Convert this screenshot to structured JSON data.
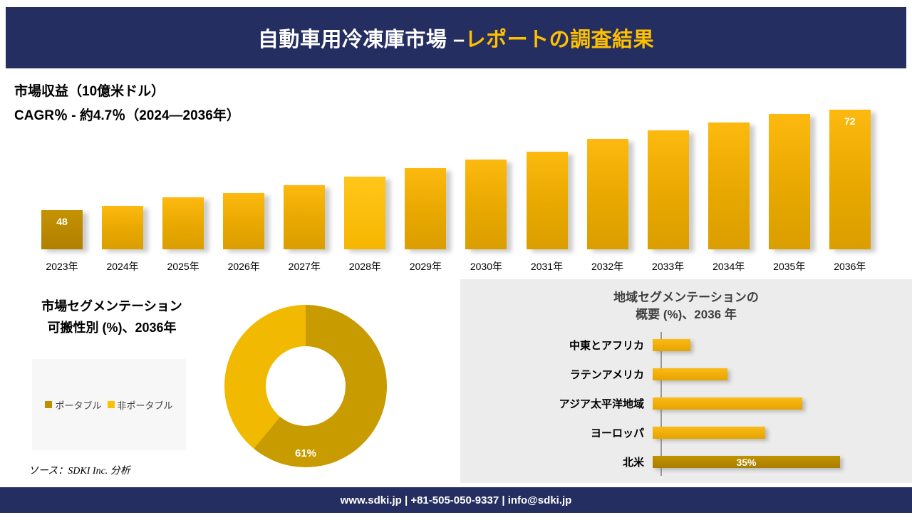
{
  "header": {
    "title_white": "自動車用冷凍庫市場 –",
    "title_gold": "レポートの調査結果"
  },
  "colors": {
    "navy": "#252e60",
    "gold": "#e8a800",
    "gold_bright": "#ffc000",
    "gold_dark": "#bf8f00",
    "panel_gray": "#ececec",
    "header_accent": "#ffc000"
  },
  "chart_data": [
    {
      "type": "bar",
      "title": "市場収益（10億米ドル）",
      "subtitle": "CAGR％ - 約4.7％（2024―2036年）",
      "categories": [
        "2023年",
        "2024年",
        "2025年",
        "2026年",
        "2027年",
        "2028年",
        "2029年",
        "2030年",
        "2031年",
        "2032年",
        "2033年",
        "2034年",
        "2035年",
        "2036年"
      ],
      "values": [
        48,
        49,
        51,
        52,
        54,
        56,
        58,
        60,
        62,
        65,
        67,
        69,
        71,
        72
      ],
      "labeled_bars": {
        "first": "48",
        "last": "72"
      },
      "ylabel": "市場収益（10億米ドル）",
      "grid": false,
      "legend": "none"
    },
    {
      "type": "pie",
      "title_line1": "市場セグメンテーション",
      "title_line2": "可搬性別 (%)、2036年",
      "labels": [
        "ポータブル",
        "非ポータブル"
      ],
      "values": [
        61,
        39
      ],
      "colors": [
        "#c89b00",
        "#f1b900"
      ],
      "legend_colors": [
        "#bf8f00",
        "#ffc000"
      ],
      "center_bottom_label": "61%",
      "donut": true,
      "legend_position": "left"
    },
    {
      "type": "bar",
      "orientation": "horizontal",
      "title_line1": "地域セグメンテーションの",
      "title_line2": "概要 (%)、2036 年",
      "categories": [
        "中東とアフリカ",
        "ラテンアメリカ",
        "アジア太平洋地域",
        "ヨーロッパ",
        "北米"
      ],
      "values": [
        7,
        14,
        28,
        21,
        35
      ],
      "labeled_index": 4,
      "bar_label": "35%",
      "xlim": [
        0,
        40
      ],
      "grid": false
    }
  ],
  "footer": {
    "source": "ソース：SDKI Inc. 分析",
    "contact": "www.sdki.jp | +81-505-050-9337 | info@sdki.jp"
  }
}
